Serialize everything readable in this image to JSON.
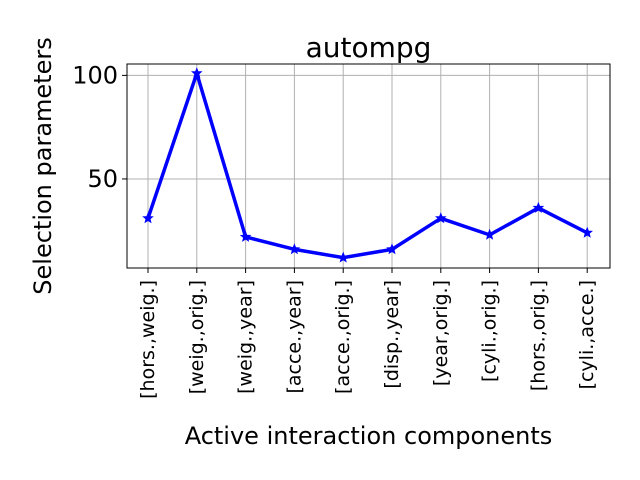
{
  "chart_data": {
    "type": "line",
    "title": "autompg",
    "xlabel": "Active interaction components",
    "ylabel": "Selection parameters",
    "categories": [
      "[hors.,weig.]",
      "[weig.,orig.]",
      "[weig.,year]",
      "[acce.,year]",
      "[acce.,orig.]",
      "[disp.,year]",
      "[year,orig.]",
      "[cyli.,orig.]",
      "[hors.,orig.]",
      "[cyli.,acce.]"
    ],
    "series": [
      {
        "color": "#0000ff",
        "marker": "star",
        "values": [
          31,
          101,
          22,
          16,
          12,
          16,
          31,
          23,
          36,
          24
        ]
      }
    ],
    "yticks": [
      50,
      100
    ],
    "ytick_labels": [
      "50",
      "100"
    ],
    "ylim": [
      7,
      105.5
    ],
    "grid": true
  }
}
